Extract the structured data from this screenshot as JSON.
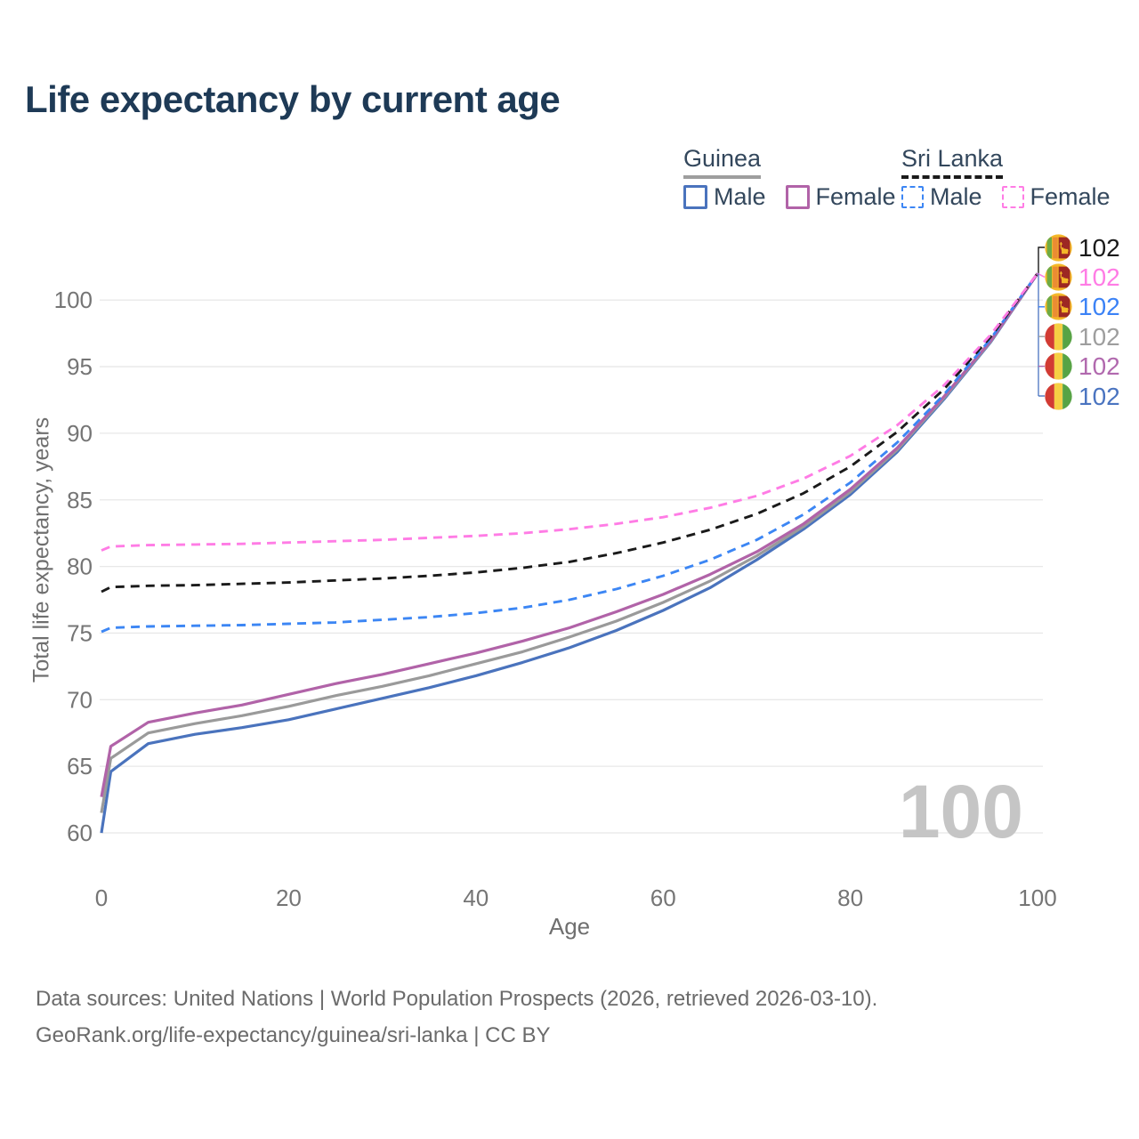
{
  "title": "Life expectancy by current age",
  "watermark": "100",
  "legend": {
    "groups": [
      {
        "name": "Guinea",
        "line_style": "solid",
        "underline_color": "#9e9e9e",
        "items": [
          {
            "label": "Male",
            "color": "#4a73bd"
          },
          {
            "label": "Female",
            "color": "#b163a8"
          }
        ]
      },
      {
        "name": "Sri Lanka",
        "line_style": "dashed",
        "underline_color": "#1a1a1a",
        "items": [
          {
            "label": "Male",
            "color": "#3c86f4"
          },
          {
            "label": "Female",
            "color": "#ff7ce5"
          }
        ]
      }
    ]
  },
  "footer": {
    "line1": "Data sources: United Nations | World Population Prospects (2026, retrieved 2026-03-10).",
    "line2": "GeoRank.org/life-expectancy/guinea/sri-lanka | CC BY"
  },
  "colors": {
    "title": "#1e3a56",
    "axis_text": "#757575",
    "grid": "#e8e8e8",
    "watermark": "#c5c5c5",
    "footer_text": "#6b6b6b",
    "legend_text": "#33475c"
  },
  "chart_data": {
    "type": "line",
    "title": "Life expectancy by current age",
    "xlabel": "Age",
    "ylabel": "Total life expectancy, years",
    "xlim": [
      0,
      100
    ],
    "ylim": [
      58.5,
      103.5
    ],
    "xticks": [
      0,
      20,
      40,
      60,
      80,
      100
    ],
    "yticks": [
      60,
      65,
      70,
      75,
      80,
      85,
      90,
      95,
      100
    ],
    "grid": true,
    "legend_position": "top-right",
    "current_age_indicator": "100",
    "x": [
      0,
      1,
      5,
      10,
      15,
      20,
      25,
      30,
      35,
      40,
      45,
      50,
      55,
      60,
      65,
      70,
      75,
      80,
      85,
      90,
      95,
      100
    ],
    "series": [
      {
        "name": "Guinea Male",
        "country": "Guinea",
        "sex": "Male",
        "color": "#4a73bd",
        "style": "solid",
        "values": [
          60.0,
          64.6,
          66.7,
          67.4,
          67.9,
          68.5,
          69.3,
          70.1,
          70.9,
          71.8,
          72.8,
          73.9,
          75.2,
          76.7,
          78.4,
          80.5,
          82.8,
          85.4,
          88.6,
          92.55,
          96.85,
          102
        ]
      },
      {
        "name": "Guinea Total",
        "country": "Guinea",
        "sex": "Total",
        "color": "#9a9a9a",
        "style": "solid",
        "values": [
          61.5,
          65.6,
          67.5,
          68.2,
          68.8,
          69.5,
          70.3,
          71.0,
          71.8,
          72.7,
          73.6,
          74.7,
          75.9,
          77.3,
          78.9,
          80.8,
          83.0,
          85.6,
          88.75,
          92.65,
          96.9,
          102
        ]
      },
      {
        "name": "Guinea Female",
        "country": "Guinea",
        "sex": "Female",
        "color": "#b163a8",
        "style": "solid",
        "values": [
          62.7,
          66.5,
          68.3,
          69.0,
          69.6,
          70.4,
          71.2,
          71.9,
          72.7,
          73.5,
          74.4,
          75.4,
          76.6,
          77.9,
          79.4,
          81.1,
          83.2,
          85.8,
          88.9,
          92.75,
          96.95,
          102
        ]
      },
      {
        "name": "Sri Lanka Male",
        "country": "Sri Lanka",
        "sex": "Male",
        "color": "#3c86f4",
        "style": "dashed",
        "values": [
          75.1,
          75.4,
          75.5,
          75.55,
          75.6,
          75.7,
          75.8,
          76.0,
          76.2,
          76.5,
          76.9,
          77.5,
          78.3,
          79.3,
          80.5,
          82.0,
          83.9,
          86.3,
          89.3,
          92.9,
          97.1,
          102
        ]
      },
      {
        "name": "Sri Lanka Total",
        "country": "Sri Lanka",
        "sex": "Total",
        "color": "#1a1a1a",
        "style": "dashed",
        "values": [
          78.1,
          78.45,
          78.55,
          78.6,
          78.7,
          78.8,
          78.95,
          79.1,
          79.3,
          79.55,
          79.9,
          80.35,
          81.0,
          81.8,
          82.75,
          83.95,
          85.5,
          87.5,
          90.1,
          93.3,
          97.25,
          102
        ]
      },
      {
        "name": "Sri Lanka Female",
        "country": "Sri Lanka",
        "sex": "Female",
        "color": "#ff7ce5",
        "style": "dashed",
        "values": [
          81.2,
          81.5,
          81.6,
          81.65,
          81.7,
          81.8,
          81.9,
          82.0,
          82.15,
          82.3,
          82.5,
          82.8,
          83.2,
          83.7,
          84.4,
          85.3,
          86.6,
          88.3,
          90.6,
          93.6,
          97.4,
          102
        ]
      }
    ],
    "end_labels": [
      {
        "country": "Sri Lanka",
        "series": "Sri Lanka Total",
        "text": "102",
        "color": "#1a1a1a"
      },
      {
        "country": "Sri Lanka",
        "series": "Sri Lanka Female",
        "text": "102",
        "color": "#ff7ce5"
      },
      {
        "country": "Sri Lanka",
        "series": "Sri Lanka Male",
        "text": "102",
        "color": "#3b82f6"
      },
      {
        "country": "Guinea",
        "series": "Guinea Total",
        "text": "102",
        "color": "#9e9e9e"
      },
      {
        "country": "Guinea",
        "series": "Guinea Female",
        "text": "102",
        "color": "#b169ae"
      },
      {
        "country": "Guinea",
        "series": "Guinea Male",
        "text": "102",
        "color": "#4a74c0"
      }
    ]
  }
}
